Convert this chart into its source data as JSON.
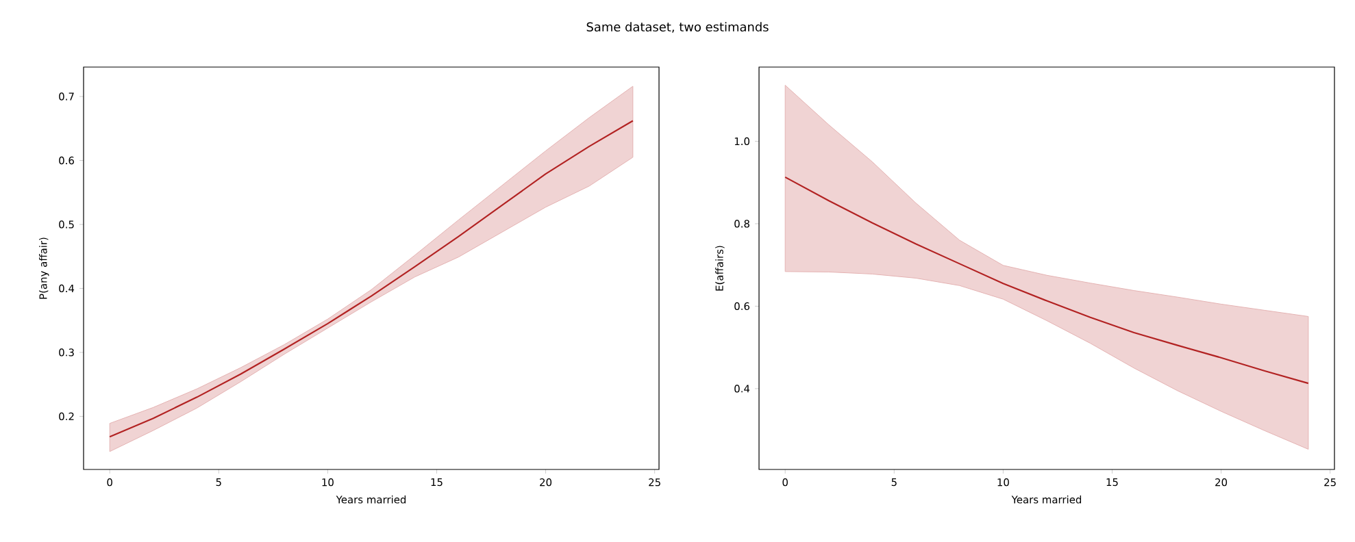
{
  "chart_data": [
    {
      "type": "line",
      "title": "Same dataset, two estimands",
      "xlabel": "Years married",
      "ylabel": "P(any affair)",
      "xlim": [
        -1.2,
        25.2
      ],
      "ylim": [
        0.117,
        0.746
      ],
      "xticks": [
        0,
        5,
        10,
        15,
        20,
        25
      ],
      "yticks": [
        0.2,
        0.3,
        0.4,
        0.5,
        0.6,
        0.7
      ],
      "x": [
        0,
        2,
        4,
        6,
        8,
        10,
        12,
        14,
        16,
        18,
        20,
        22,
        24
      ],
      "series": [
        {
          "color": "#b22222",
          "values": [
            0.168,
            0.197,
            0.23,
            0.266,
            0.305,
            0.345,
            0.388,
            0.434,
            0.481,
            0.53,
            0.579,
            0.622,
            0.662
          ],
          "upper": [
            0.189,
            0.214,
            0.243,
            0.276,
            0.312,
            0.352,
            0.398,
            0.452,
            0.507,
            0.561,
            0.615,
            0.667,
            0.716
          ],
          "lower": [
            0.145,
            0.178,
            0.213,
            0.254,
            0.297,
            0.338,
            0.379,
            0.418,
            0.449,
            0.488,
            0.527,
            0.56,
            0.605
          ]
        }
      ]
    },
    {
      "type": "line",
      "xlabel": "Years married",
      "ylabel": "E(affairs)",
      "xlim": [
        -1.2,
        25.2
      ],
      "ylim": [
        0.204,
        1.18
      ],
      "xticks": [
        0,
        5,
        10,
        15,
        20,
        25
      ],
      "yticks": [
        0.4,
        0.6,
        0.8,
        {
          "value": 1.0,
          "label": "1.0"
        }
      ],
      "x": [
        0,
        2,
        4,
        6,
        8,
        10,
        12,
        14,
        16,
        18,
        20,
        22,
        24
      ],
      "series": [
        {
          "color": "#b22222",
          "values": [
            0.913,
            0.856,
            0.802,
            0.751,
            0.703,
            0.655,
            0.613,
            0.573,
            0.536,
            0.505,
            0.475,
            0.443,
            0.413
          ],
          "upper": [
            1.136,
            1.04,
            0.95,
            0.85,
            0.76,
            0.699,
            0.675,
            0.656,
            0.638,
            0.622,
            0.605,
            0.59,
            0.575
          ],
          "lower": [
            0.684,
            0.683,
            0.678,
            0.668,
            0.65,
            0.617,
            0.565,
            0.51,
            0.45,
            0.395,
            0.345,
            0.298,
            0.253
          ]
        }
      ]
    }
  ]
}
